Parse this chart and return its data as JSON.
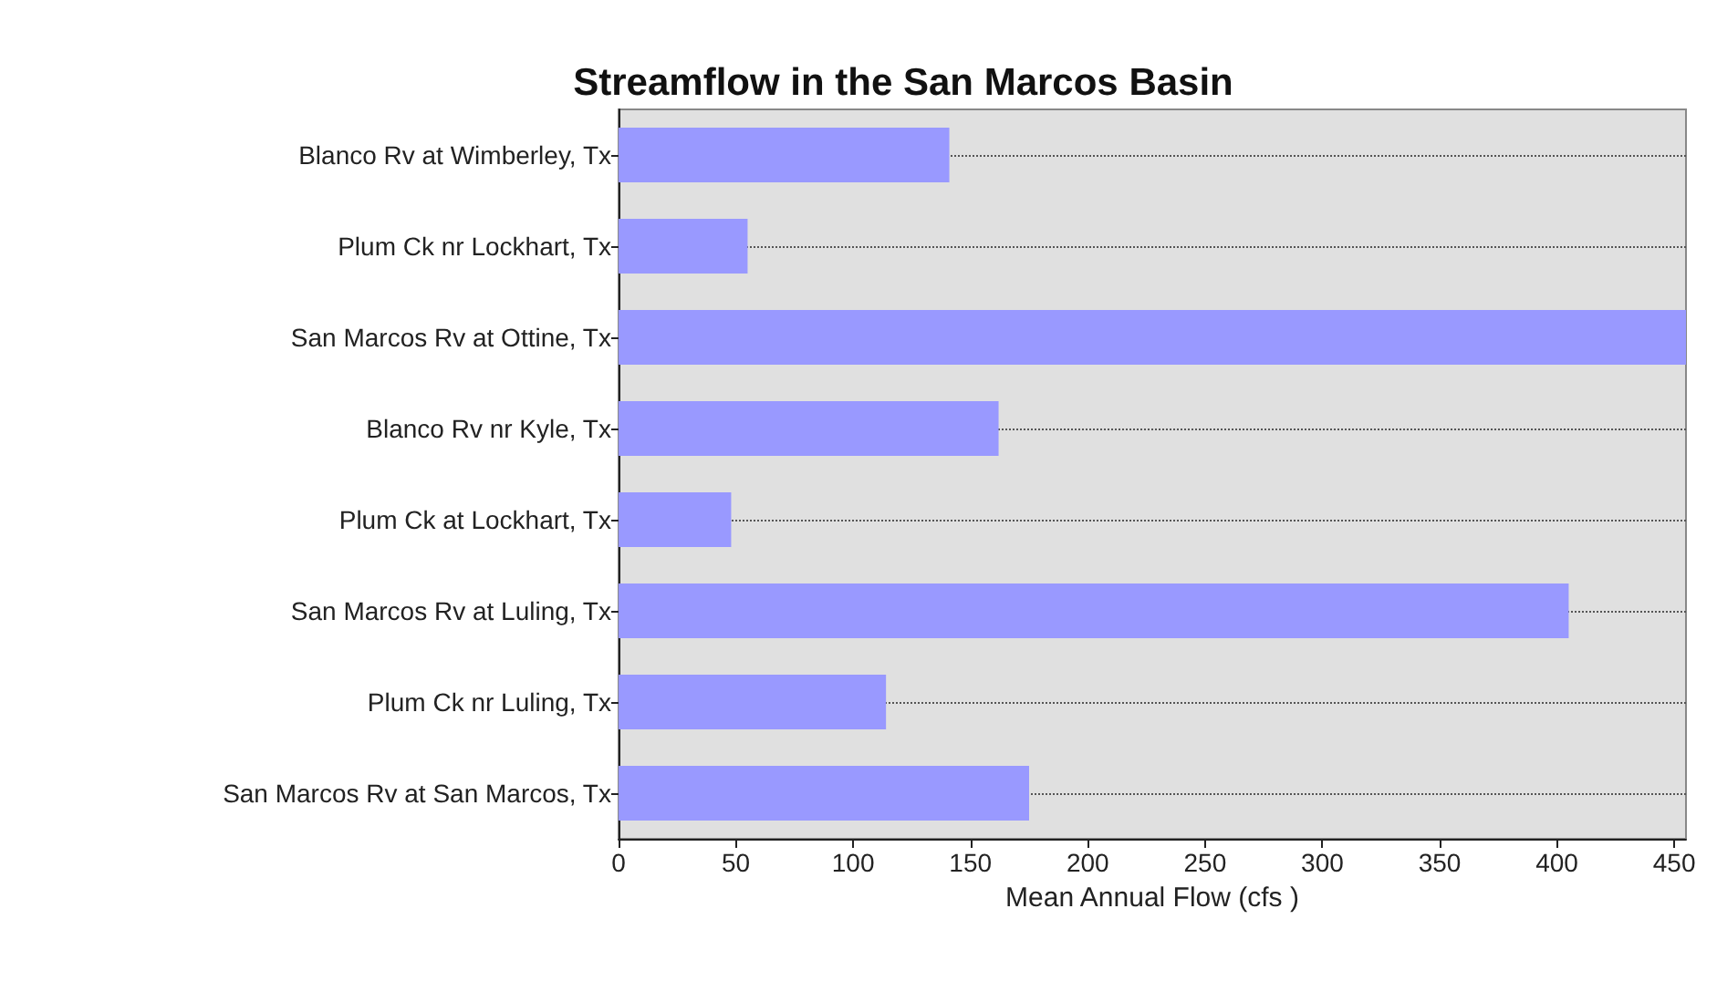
{
  "chart_data": {
    "type": "bar",
    "orientation": "horizontal",
    "title": "Streamflow in the San Marcos Basin",
    "xlabel": "Mean Annual Flow (cfs )",
    "categories": [
      "Blanco Rv at Wimberley, Tx",
      "Plum Ck nr Lockhart, Tx",
      "San Marcos Rv at Ottine, Tx",
      "Blanco Rv nr Kyle, Tx",
      "Plum Ck at Lockhart, Tx",
      "San Marcos Rv at Luling, Tx",
      "Plum Ck nr Luling, Tx",
      "San Marcos Rv at San Marcos, Tx"
    ],
    "values": [
      141,
      55,
      455,
      162,
      48,
      405,
      114,
      175
    ],
    "color": "#9999ff",
    "xlim": [
      0,
      455
    ],
    "xticks": [
      0,
      50,
      100,
      150,
      200,
      250,
      300,
      350,
      400,
      450
    ],
    "grid": "y"
  }
}
